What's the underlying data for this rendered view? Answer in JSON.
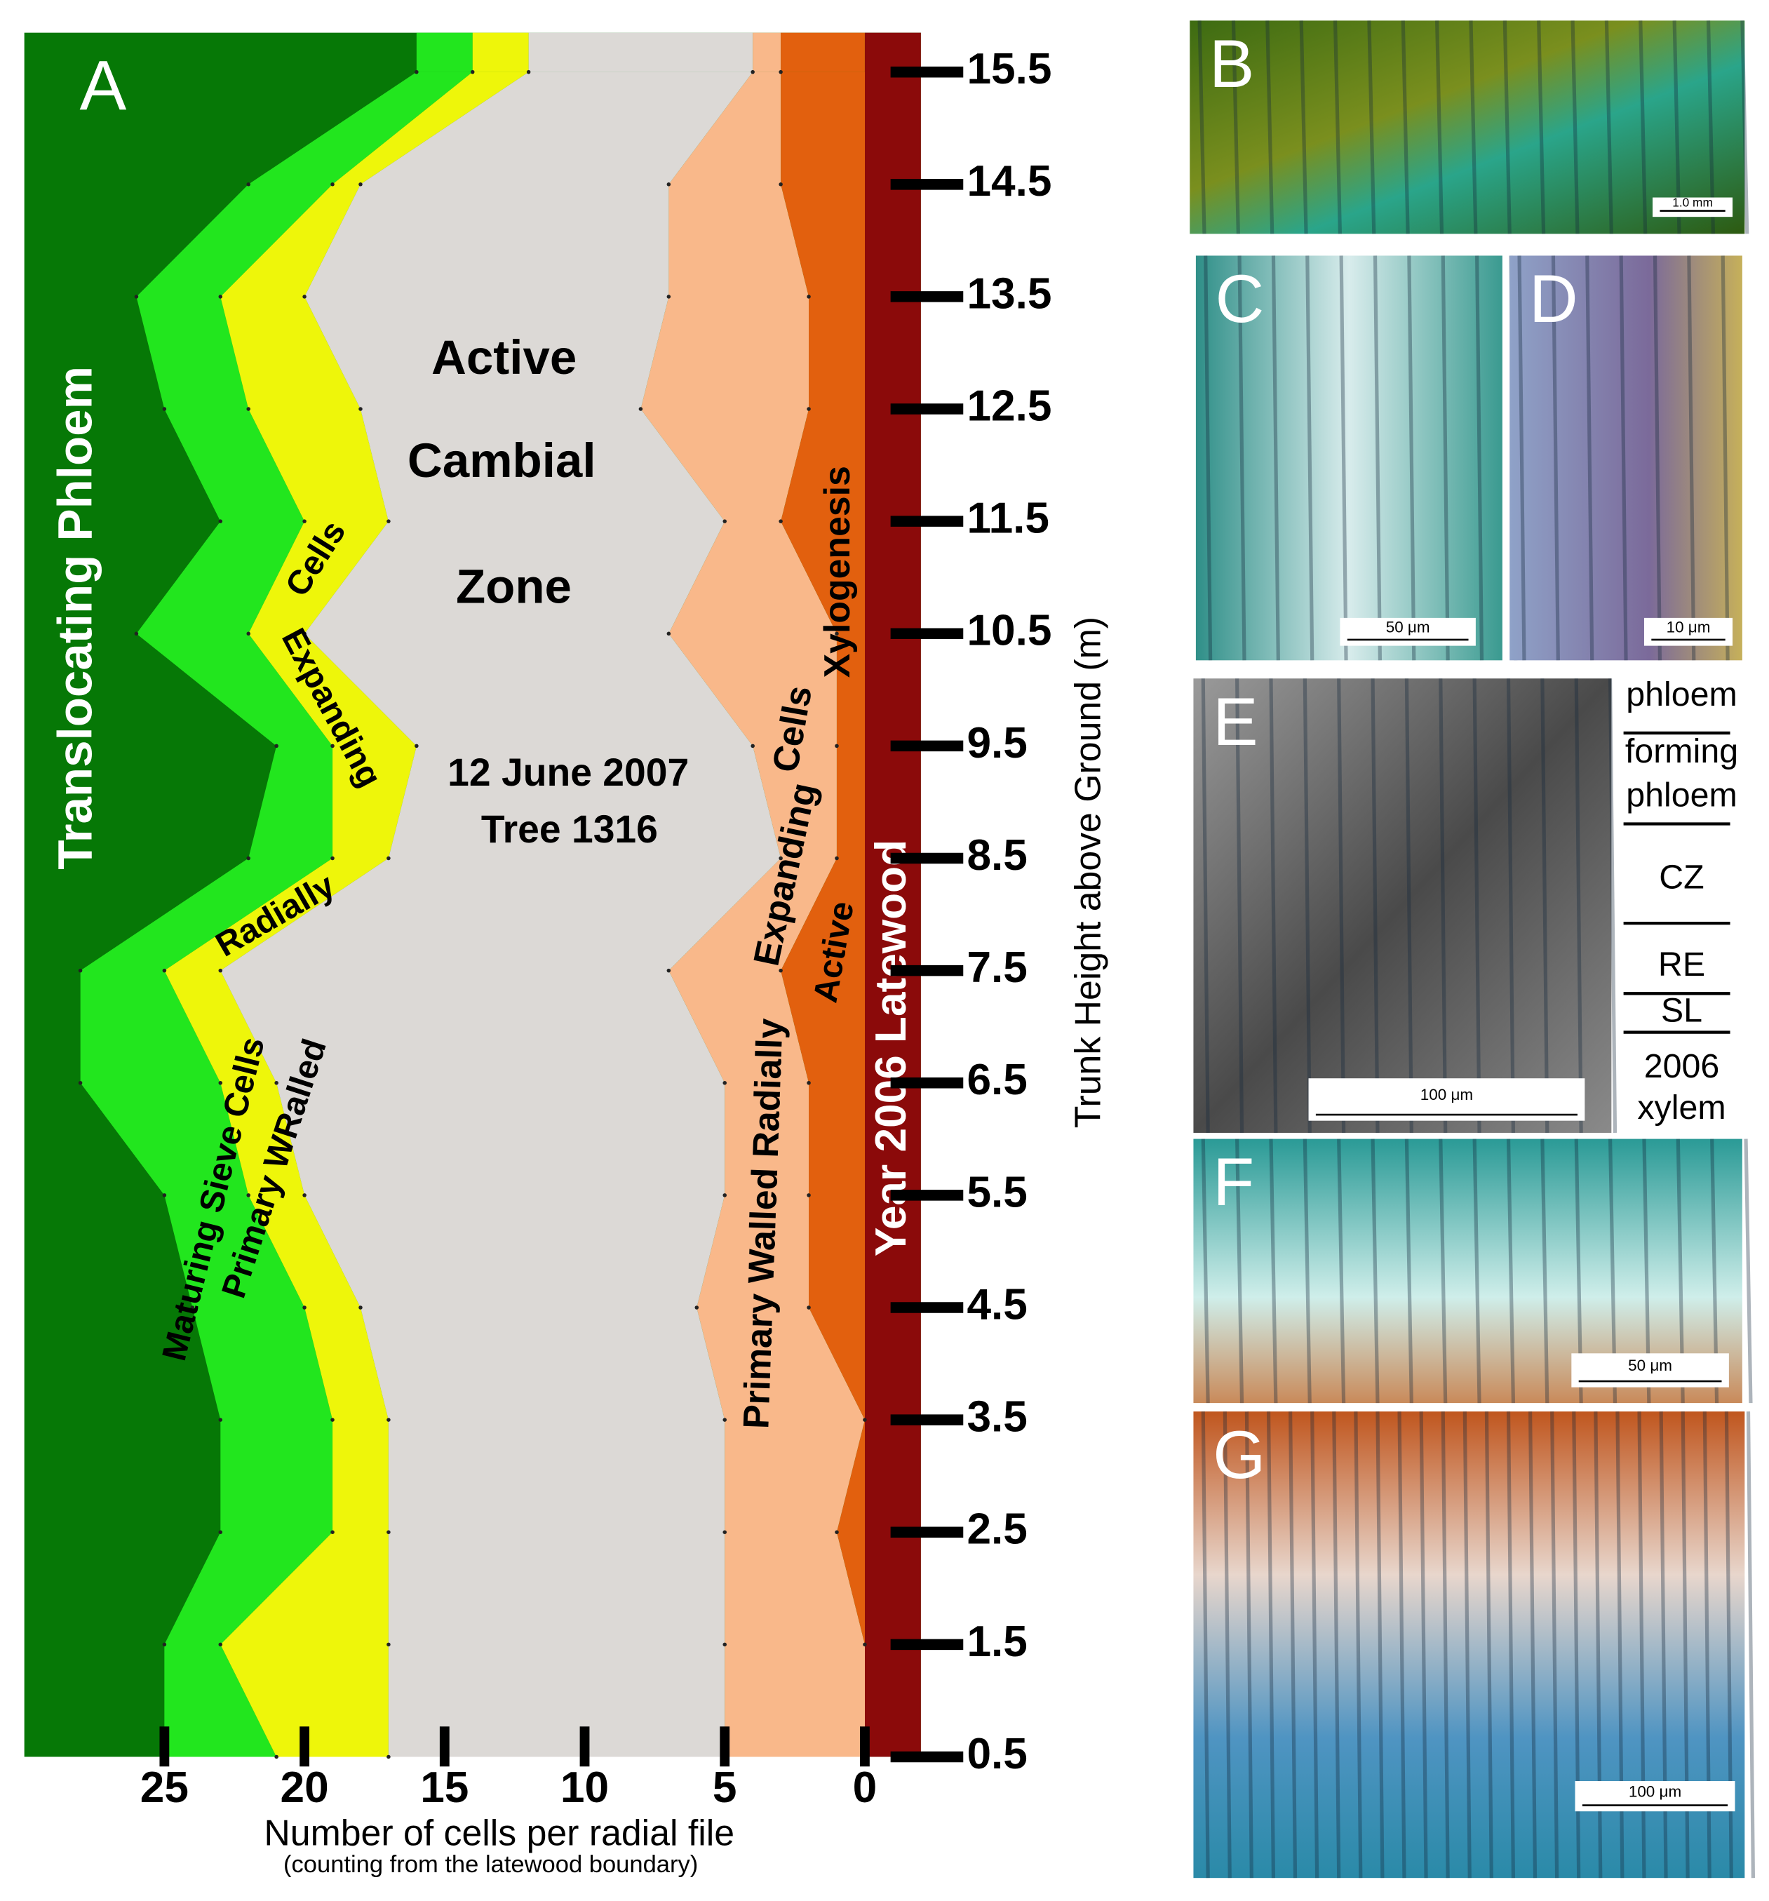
{
  "chart_data": {
    "type": "stacked-area-horizontal",
    "panel_label": "A",
    "x_label": "Number of cells per radial file",
    "x_sublabel": "(counting from the latewood boundary)",
    "y_label": "Trunk Height above Ground (m)",
    "y": [
      0.5,
      1.5,
      2.5,
      3.5,
      4.5,
      5.5,
      6.5,
      7.5,
      8.5,
      9.5,
      10.5,
      11.5,
      12.5,
      13.5,
      14.5,
      15.5
    ],
    "series": [
      {
        "color": "#e2600e",
        "values": [
          0,
          0,
          1,
          0,
          2,
          2,
          2,
          3,
          1,
          1,
          1,
          3,
          2,
          2,
          3,
          3
        ]
      },
      {
        "color": "#f9b88a",
        "values": [
          5,
          5,
          4,
          5,
          4,
          3,
          3,
          4,
          2,
          3,
          6,
          2,
          6,
          5,
          4,
          1
        ]
      },
      {
        "color": "#dcd9d6",
        "values": [
          12,
          12,
          12,
          12,
          12,
          15,
          16,
          16,
          14,
          12,
          13,
          12,
          10,
          13,
          11,
          8
        ]
      },
      {
        "color": "#eef60a",
        "values": [
          4,
          6,
          2,
          2,
          2,
          2,
          2,
          2,
          2,
          3,
          2,
          3,
          4,
          3,
          1,
          2
        ]
      },
      {
        "color": "#22e61e",
        "values": [
          4,
          2,
          4,
          4,
          4,
          3,
          5,
          3,
          3,
          2,
          4,
          3,
          3,
          3,
          3,
          2
        ]
      }
    ],
    "phloem_color": "#067806",
    "latewood_color": "#8b0a0a",
    "xlim": [
      30,
      -2
    ],
    "ylim": [
      0.5,
      15.85
    ],
    "xticks": [
      25,
      20,
      15,
      10,
      5,
      0
    ],
    "yticks": [
      0.5,
      1.5,
      2.5,
      3.5,
      4.5,
      5.5,
      6.5,
      7.5,
      8.5,
      9.5,
      10.5,
      11.5,
      12.5,
      13.5,
      14.5,
      15.5
    ],
    "annotations": [
      "Translocating Phloem",
      "Maturing Sieve Cells",
      "Primary WRalled",
      "Radially",
      "Expanding",
      "Cells",
      "Active",
      "Cambial",
      "Zone",
      "12 June 2007",
      "Tree 1316",
      "Primary Walled Radially",
      "Expanding",
      "Cells",
      "Active",
      "Xylogenesis",
      "Year 2006 Latewood"
    ]
  },
  "panels": [
    {
      "label": "B",
      "scale_bar": "1.0 mm"
    },
    {
      "label": "C",
      "scale_bar": "50 μm"
    },
    {
      "label": "D",
      "scale_bar": "10 μm"
    },
    {
      "label": "E",
      "scale_bar": "100 μm"
    },
    {
      "label": "F",
      "scale_bar": "50 μm"
    },
    {
      "label": "G",
      "scale_bar": "100 μm"
    }
  ],
  "panel_e_legend": [
    "phloem",
    "forming",
    "phloem",
    "CZ",
    "RE",
    "SL",
    "2006",
    "xylem"
  ]
}
